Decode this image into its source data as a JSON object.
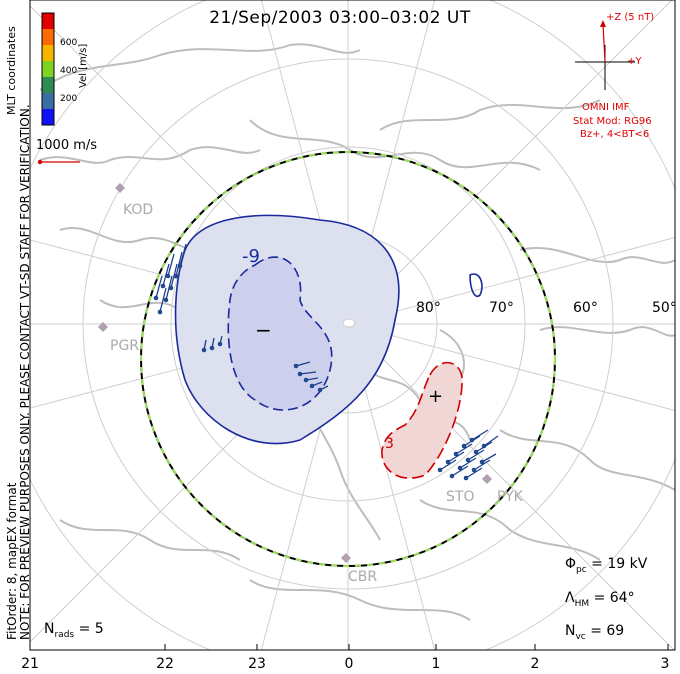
{
  "title": "21/Sep/2003 03:00–03:02 UT",
  "side_notes": {
    "preview": "NOTE: FOR PREVIEW PURPOSES ONLY. PLEASE CONTACT VT-SD STAFF FOR VERIFICATION.",
    "fit": "FitOrder: 8, mapEX format",
    "coords": "MLT coordinates"
  },
  "colorbar": {
    "title": "Vel [m/s]",
    "ticks": [
      "600",
      "400",
      "200"
    ],
    "colors": [
      "#e00000",
      "#ff6a00",
      "#f4b400",
      "#7ed321",
      "#2e8b57",
      "#3a6ea5",
      "#1010ff"
    ]
  },
  "velocity_ref": "1000 m/s",
  "imf": {
    "z_label": "+Z (5 nT)",
    "y_label": "+Y",
    "source": "OMNI IMF",
    "model": "Stat Mod: RG96",
    "condition": "Bz+, 4<BT<6"
  },
  "contours": {
    "minus_label": "−",
    "plus_label": "+",
    "minus_value": "-9",
    "plus_value": "3"
  },
  "lat_labels": [
    "80°",
    "70°",
    "60°",
    "50°"
  ],
  "stations": [
    "KOD",
    "PGR",
    "CBR",
    "STO",
    "PYK"
  ],
  "stats": {
    "phi": {
      "sym": "Φ",
      "sub": "pc",
      "value": "=  19 kV"
    },
    "lambda": {
      "sym": "Λ",
      "sub": "HM",
      "value": "=  64°"
    },
    "nvc": {
      "sym": "N",
      "sub": "vc",
      "value": "=  69"
    },
    "nrads": {
      "sym": "N",
      "sub": "rads",
      "value": "=  5"
    }
  },
  "mlt_ticks": [
    "21",
    "22",
    "23",
    "0",
    "1",
    "2",
    "3"
  ]
}
